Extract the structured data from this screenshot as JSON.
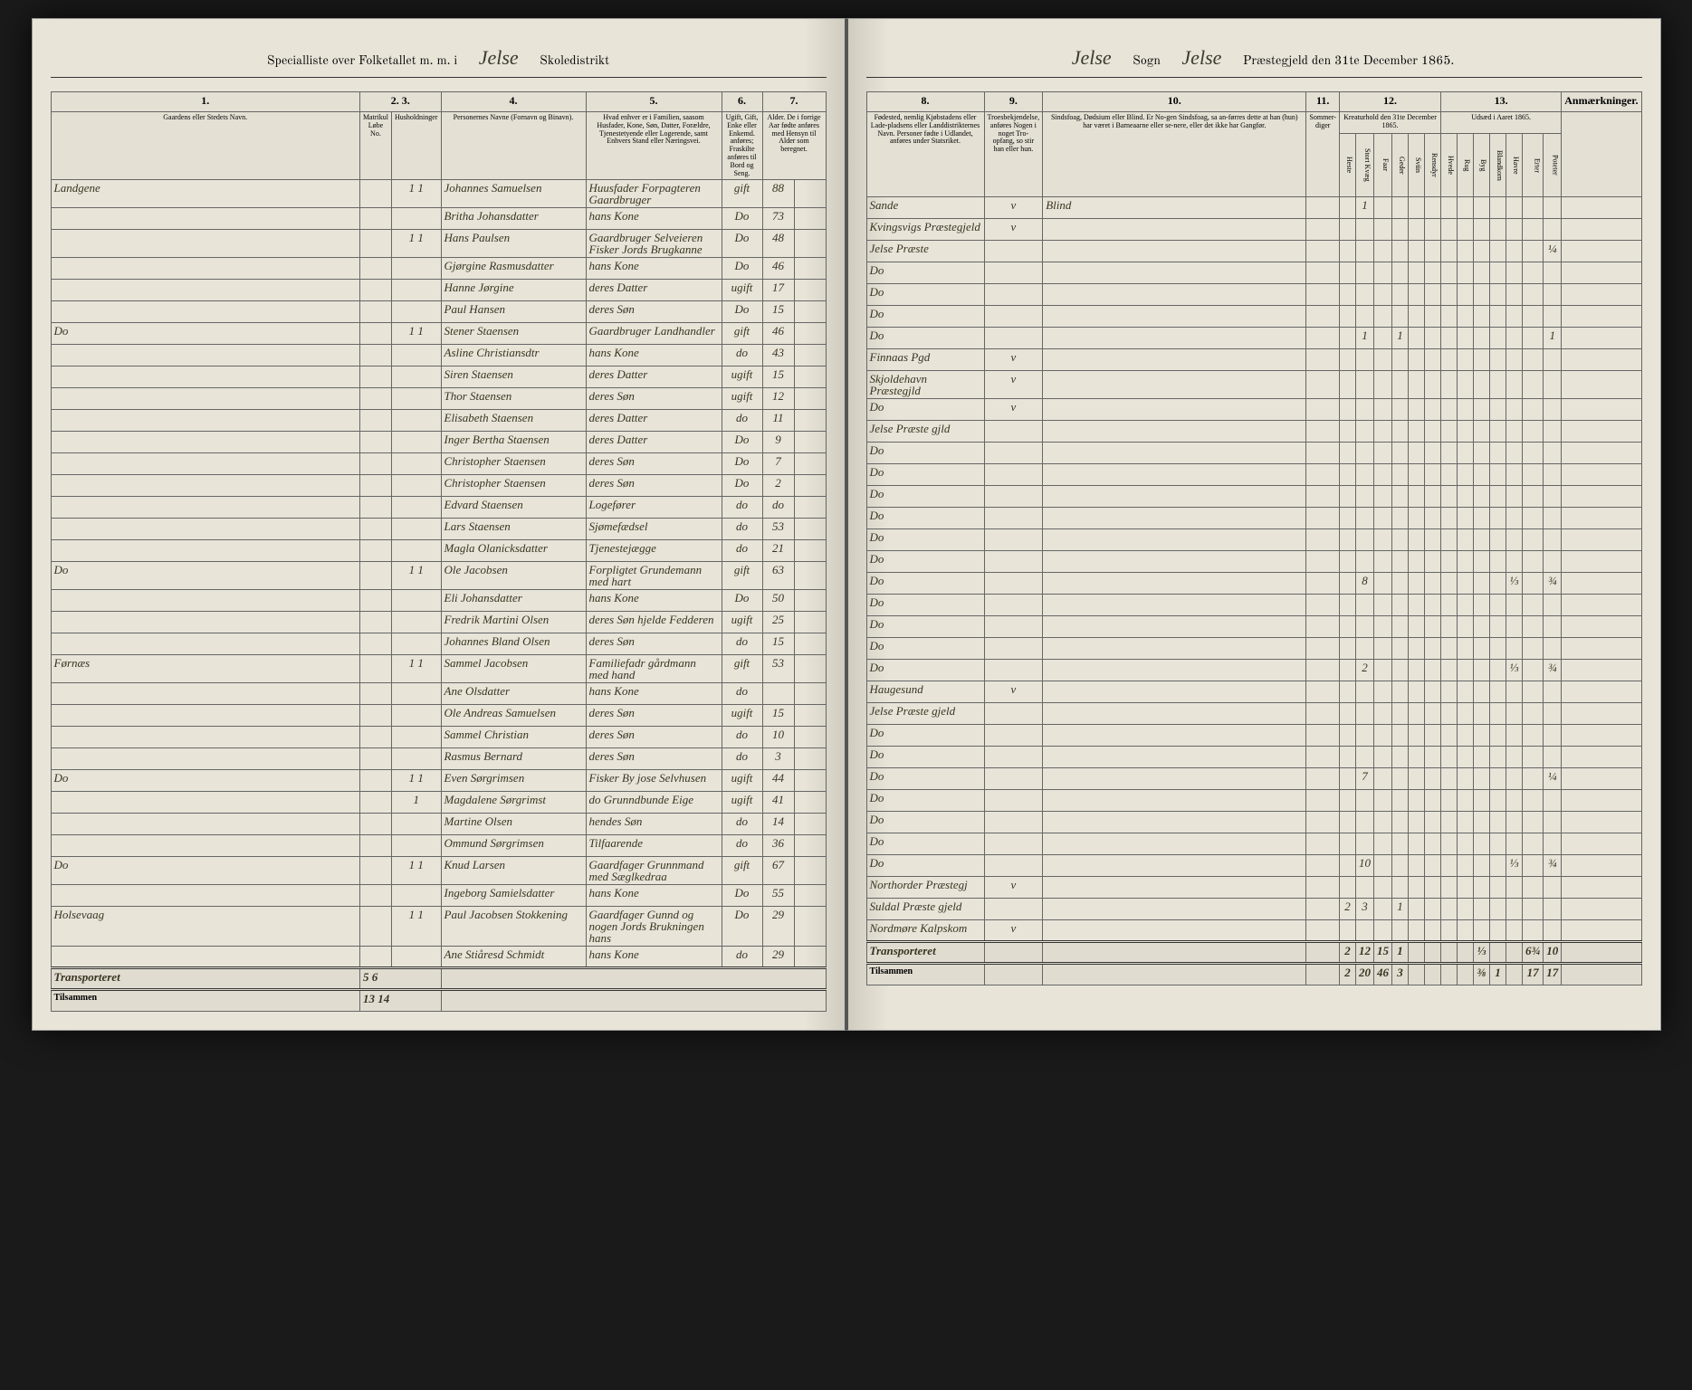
{
  "header": {
    "left_prefix": "Specialliste over Folketallet m. m. i",
    "district_script": "Jelse",
    "left_suffix": "Skoledistrikt",
    "right_sogn_script": "Jelse",
    "right_sogn_label": "Sogn",
    "right_gjeld_script": "Jelse",
    "right_gjeld_label": "Præstegjeld den 31te December 1865."
  },
  "columns_left": {
    "c1": "1.",
    "c2": "2.",
    "c3": "3.",
    "c4": "4.",
    "c5": "5.",
    "c6": "6.",
    "c7": "7.",
    "c1_label": "Gaardens eller Stedets\nNavn.",
    "c2_label": "Matrikul Løbe No.",
    "c3_label": "Husholdninger",
    "c4_label": "Personernes Navne (Fornavn og Binavn).",
    "c5_label": "Hvad enhver er i Familien, saasom Husfader, Kone, Søn, Datter, Forældre, Tjenestetyende eller Logerende, samt Enhvers Stand eller Næringsvei.",
    "c6_label": "Ugift, Gift, Enke eller Enkemd. anføres; Fraskilte anføres til Bord og Seng.",
    "c7_label": "Alder. De i forrige Aar fødte anføres med Hensyn til Alder som beregnet."
  },
  "columns_right": {
    "c8": "8.",
    "c9": "9.",
    "c10": "10.",
    "c11": "11.",
    "c12": "12.",
    "c13": "13.",
    "c8_label": "Fødested, nemlig Kjøbstadens eller Lade-pladsens eller Landdistrikternes Navn. Personer fødte i Udlandet, anføres under Statsriket.",
    "c9_label": "Troesbekjendelse, anføres Nogen i noget Tro-opfang, so stir han eller hun.",
    "c10_label": "Sindsfoag, Dødsium eller Blind. Er No-gen Sindsfoag, sa an-førres dette at han (hun) har været i Barneaarne eller se-nere, eller det ikke har Gangfør.",
    "c11_label": "Sommer-diger",
    "c12_label": "Kreaturhold den 31te December 1865.",
    "c13_label": "Udsæd i Aaret 1865.",
    "c14_label": "Anmærkninger.",
    "c12_sub": [
      "Heste",
      "Stort Kvæg",
      "Faar",
      "Geder",
      "Sviin",
      "Rensdyr"
    ],
    "c13_sub": [
      "Hvede",
      "Rug",
      "Byg",
      "Blandkorn",
      "Havre",
      "Erter",
      "Poteter"
    ]
  },
  "rows": [
    {
      "place": "Landgene",
      "m": "",
      "h": "1 1",
      "name": "Johannes Samuelsen",
      "role": "Huusfader Forpagteren Gaardbruger",
      "status": "gift",
      "age": "88",
      "birth": "Sande",
      "c9": "v",
      "c10": "Blind",
      "c12": [
        "",
        "1",
        "",
        "",
        "",
        ""
      ],
      "c13": [
        "",
        "",
        "",
        "",
        "",
        "",
        ""
      ]
    },
    {
      "place": "",
      "m": "",
      "h": "",
      "name": "Britha Johansdatter",
      "role": "hans Kone",
      "status": "Do",
      "age": "73",
      "birth": "Kvingsvigs Præstegjeld",
      "c9": "v",
      "c10": "",
      "c12": [
        "",
        "",
        "",
        "",
        "",
        ""
      ],
      "c13": [
        "",
        "",
        "",
        "",
        "",
        "",
        ""
      ]
    },
    {
      "place": "",
      "m": "",
      "h": "1 1",
      "name": "Hans Paulsen",
      "role": "Gaardbruger Selveieren Fisker Jords Brugkanne",
      "status": "Do",
      "age": "48",
      "birth": "Jelse Præste",
      "c9": "",
      "c10": "",
      "c12": [
        "",
        "",
        "",
        "",
        "",
        ""
      ],
      "c13": [
        "",
        "",
        "",
        "",
        "",
        "",
        "¼"
      ]
    },
    {
      "place": "",
      "m": "",
      "h": "",
      "name": "Gjørgine Rasmusdatter",
      "role": "hans Kone",
      "status": "Do",
      "age": "46",
      "birth": "Do",
      "c9": "",
      "c10": "",
      "c12": [
        "",
        "",
        "",
        "",
        "",
        ""
      ],
      "c13": [
        "",
        "",
        "",
        "",
        "",
        "",
        ""
      ]
    },
    {
      "place": "",
      "m": "",
      "h": "",
      "name": "Hanne Jørgine",
      "role": "deres Datter",
      "status": "ugift",
      "age": "17",
      "birth": "Do",
      "c9": "",
      "c10": "",
      "c12": [
        "",
        "",
        "",
        "",
        "",
        ""
      ],
      "c13": [
        "",
        "",
        "",
        "",
        "",
        "",
        ""
      ]
    },
    {
      "place": "",
      "m": "",
      "h": "",
      "name": "Paul Hansen",
      "role": "deres Søn",
      "status": "Do",
      "age": "15",
      "birth": "Do",
      "c9": "",
      "c10": "",
      "c12": [
        "",
        "",
        "",
        "",
        "",
        ""
      ],
      "c13": [
        "",
        "",
        "",
        "",
        "",
        "",
        ""
      ]
    },
    {
      "place": "Do",
      "m": "",
      "h": "1 1",
      "name": "Stener Staensen",
      "role": "Gaardbruger Landhandler",
      "status": "gift",
      "age": "46",
      "birth": "Do",
      "c9": "",
      "c10": "",
      "c12": [
        "",
        "1",
        "",
        "1",
        "",
        ""
      ],
      "c13": [
        "",
        "",
        "",
        "",
        "",
        "",
        "1"
      ]
    },
    {
      "place": "",
      "m": "",
      "h": "",
      "name": "Asline Christiansdtr",
      "role": "hans Kone",
      "status": "do",
      "age": "43",
      "birth": "Finnaas Pgd",
      "c9": "v",
      "c10": "",
      "c12": [
        "",
        "",
        "",
        "",
        "",
        ""
      ],
      "c13": [
        "",
        "",
        "",
        "",
        "",
        "",
        ""
      ]
    },
    {
      "place": "",
      "m": "",
      "h": "",
      "name": "Siren Staensen",
      "role": "deres Datter",
      "status": "ugift",
      "age": "15",
      "birth": "Skjoldehavn Præstegjld",
      "c9": "v",
      "c10": "",
      "c12": [
        "",
        "",
        "",
        "",
        "",
        ""
      ],
      "c13": [
        "",
        "",
        "",
        "",
        "",
        "",
        ""
      ]
    },
    {
      "place": "",
      "m": "",
      "h": "",
      "name": "Thor Staensen",
      "role": "deres Søn",
      "status": "ugift",
      "age": "12",
      "birth": "Do",
      "c9": "v",
      "c10": "",
      "c12": [
        "",
        "",
        "",
        "",
        "",
        ""
      ],
      "c13": [
        "",
        "",
        "",
        "",
        "",
        "",
        ""
      ]
    },
    {
      "place": "",
      "m": "",
      "h": "",
      "name": "Elisabeth Staensen",
      "role": "deres Datter",
      "status": "do",
      "age": "11",
      "birth": "Jelse Præste gjld",
      "c9": "",
      "c10": "",
      "c12": [
        "",
        "",
        "",
        "",
        "",
        ""
      ],
      "c13": [
        "",
        "",
        "",
        "",
        "",
        "",
        ""
      ]
    },
    {
      "place": "",
      "m": "",
      "h": "",
      "name": "Inger Bertha Staensen",
      "role": "deres Datter",
      "status": "Do",
      "age": "9",
      "birth": "Do",
      "c9": "",
      "c10": "",
      "c12": [
        "",
        "",
        "",
        "",
        "",
        ""
      ],
      "c13": [
        "",
        "",
        "",
        "",
        "",
        "",
        ""
      ]
    },
    {
      "place": "",
      "m": "",
      "h": "",
      "name": "Christopher Staensen",
      "role": "deres Søn",
      "status": "Do",
      "age": "7",
      "birth": "Do",
      "c9": "",
      "c10": "",
      "c12": [
        "",
        "",
        "",
        "",
        "",
        ""
      ],
      "c13": [
        "",
        "",
        "",
        "",
        "",
        "",
        ""
      ]
    },
    {
      "place": "",
      "m": "",
      "h": "",
      "name": "Christopher Staensen",
      "role": "deres Søn",
      "status": "Do",
      "age": "2",
      "birth": "Do",
      "c9": "",
      "c10": "",
      "c12": [
        "",
        "",
        "",
        "",
        "",
        ""
      ],
      "c13": [
        "",
        "",
        "",
        "",
        "",
        "",
        ""
      ]
    },
    {
      "place": "",
      "m": "",
      "h": "",
      "name": "Edvard Staensen",
      "role": "Logefører",
      "status": "do",
      "age": "do",
      "birth": "Do",
      "c9": "",
      "c10": "",
      "c12": [
        "",
        "",
        "",
        "",
        "",
        ""
      ],
      "c13": [
        "",
        "",
        "",
        "",
        "",
        "",
        ""
      ]
    },
    {
      "place": "",
      "m": "",
      "h": "",
      "name": "Lars Staensen",
      "role": "Sjømefædsel",
      "status": "do",
      "age": "53",
      "birth": "Do",
      "c9": "",
      "c10": "",
      "c12": [
        "",
        "",
        "",
        "",
        "",
        ""
      ],
      "c13": [
        "",
        "",
        "",
        "",
        "",
        "",
        ""
      ]
    },
    {
      "place": "",
      "m": "",
      "h": "",
      "name": "Magla Olanicksdatter",
      "role": "Tjenestejægge",
      "status": "do",
      "age": "21",
      "birth": "Do",
      "c9": "",
      "c10": "",
      "c12": [
        "",
        "",
        "",
        "",
        "",
        ""
      ],
      "c13": [
        "",
        "",
        "",
        "",
        "",
        "",
        ""
      ]
    },
    {
      "place": "Do",
      "m": "",
      "h": "1 1",
      "name": "Ole Jacobsen",
      "role": "Forpligtet Grundemann med hart",
      "status": "gift",
      "age": "63",
      "birth": "Do",
      "c9": "",
      "c10": "",
      "c12": [
        "",
        "8",
        "",
        "",
        "",
        ""
      ],
      "c13": [
        "",
        "",
        "",
        "",
        "⅓",
        "",
        "¾"
      ]
    },
    {
      "place": "",
      "m": "",
      "h": "",
      "name": "Eli Johansdatter",
      "role": "hans Kone",
      "status": "Do",
      "age": "50",
      "birth": "Do",
      "c9": "",
      "c10": "",
      "c12": [
        "",
        "",
        "",
        "",
        "",
        ""
      ],
      "c13": [
        "",
        "",
        "",
        "",
        "",
        "",
        ""
      ]
    },
    {
      "place": "",
      "m": "",
      "h": "",
      "name": "Fredrik Martini Olsen",
      "role": "deres Søn hjelde Fedderen",
      "status": "ugift",
      "age": "25",
      "birth": "Do",
      "c9": "",
      "c10": "",
      "c12": [
        "",
        "",
        "",
        "",
        "",
        ""
      ],
      "c13": [
        "",
        "",
        "",
        "",
        "",
        "",
        ""
      ]
    },
    {
      "place": "",
      "m": "",
      "h": "",
      "name": "Johannes Bland Olsen",
      "role": "deres Søn",
      "status": "do",
      "age": "15",
      "birth": "Do",
      "c9": "",
      "c10": "",
      "c12": [
        "",
        "",
        "",
        "",
        "",
        ""
      ],
      "c13": [
        "",
        "",
        "",
        "",
        "",
        "",
        ""
      ]
    },
    {
      "place": "Førnæs",
      "m": "",
      "h": "1 1",
      "name": "Sammel Jacobsen",
      "role": "Familiefadr gårdmann med hand",
      "status": "gift",
      "age": "53",
      "birth": "Do",
      "c9": "",
      "c10": "",
      "c12": [
        "",
        "2",
        "",
        "",
        "",
        ""
      ],
      "c13": [
        "",
        "",
        "",
        "",
        "⅓",
        "",
        "¾"
      ]
    },
    {
      "place": "",
      "m": "",
      "h": "",
      "name": "Ane Olsdatter",
      "role": "hans Kone",
      "status": "do",
      "age": "",
      "birth": "Haugesund",
      "c9": "v",
      "c10": "",
      "c12": [
        "",
        "",
        "",
        "",
        "",
        ""
      ],
      "c13": [
        "",
        "",
        "",
        "",
        "",
        "",
        ""
      ]
    },
    {
      "place": "",
      "m": "",
      "h": "",
      "name": "Ole Andreas Samuelsen",
      "role": "deres Søn",
      "status": "ugift",
      "age": "15",
      "birth": "Jelse Præste gjeld",
      "c9": "",
      "c10": "",
      "c12": [
        "",
        "",
        "",
        "",
        "",
        ""
      ],
      "c13": [
        "",
        "",
        "",
        "",
        "",
        "",
        ""
      ]
    },
    {
      "place": "",
      "m": "",
      "h": "",
      "name": "Sammel Christian",
      "role": "deres Søn",
      "status": "do",
      "age": "10",
      "birth": "Do",
      "c9": "",
      "c10": "",
      "c12": [
        "",
        "",
        "",
        "",
        "",
        ""
      ],
      "c13": [
        "",
        "",
        "",
        "",
        "",
        "",
        ""
      ]
    },
    {
      "place": "",
      "m": "",
      "h": "",
      "name": "Rasmus Bernard",
      "role": "deres Søn",
      "status": "do",
      "age": "3",
      "birth": "Do",
      "c9": "",
      "c10": "",
      "c12": [
        "",
        "",
        "",
        "",
        "",
        ""
      ],
      "c13": [
        "",
        "",
        "",
        "",
        "",
        "",
        ""
      ]
    },
    {
      "place": "Do",
      "m": "",
      "h": "1 1",
      "name": "Even Sørgrimsen",
      "role": "Fisker By jose Selvhusen",
      "status": "ugift",
      "age": "44",
      "birth": "Do",
      "c9": "",
      "c10": "",
      "c12": [
        "",
        "7",
        "",
        "",
        "",
        ""
      ],
      "c13": [
        "",
        "",
        "",
        "",
        "",
        "",
        "¼"
      ]
    },
    {
      "place": "",
      "m": "",
      "h": "1",
      "name": "Magdalene Sørgrimst",
      "role": "do Grunndbunde Eige",
      "status": "ugift",
      "age": "41",
      "birth": "Do",
      "c9": "",
      "c10": "",
      "c12": [
        "",
        "",
        "",
        "",
        "",
        ""
      ],
      "c13": [
        "",
        "",
        "",
        "",
        "",
        "",
        ""
      ]
    },
    {
      "place": "",
      "m": "",
      "h": "",
      "name": "Martine Olsen",
      "role": "hendes Søn",
      "status": "do",
      "age": "14",
      "birth": "Do",
      "c9": "",
      "c10": "",
      "c12": [
        "",
        "",
        "",
        "",
        "",
        ""
      ],
      "c13": [
        "",
        "",
        "",
        "",
        "",
        "",
        ""
      ]
    },
    {
      "place": "",
      "m": "",
      "h": "",
      "name": "Ommund Sørgrimsen",
      "role": "Tilfaarende",
      "status": "do",
      "age": "36",
      "birth": "Do",
      "c9": "",
      "c10": "",
      "c12": [
        "",
        "",
        "",
        "",
        "",
        ""
      ],
      "c13": [
        "",
        "",
        "",
        "",
        "",
        "",
        ""
      ]
    },
    {
      "place": "Do",
      "m": "",
      "h": "1 1",
      "name": "Knud Larsen",
      "role": "Gaardfager Grunnmand med Sæglkedraa",
      "status": "gift",
      "age": "67",
      "birth": "Do",
      "c9": "",
      "c10": "",
      "c12": [
        "",
        "10",
        "",
        "",
        "",
        ""
      ],
      "c13": [
        "",
        "",
        "",
        "",
        "⅓",
        "",
        "¾"
      ]
    },
    {
      "place": "",
      "m": "",
      "h": "",
      "name": "Ingeborg Samielsdatter",
      "role": "hans Kone",
      "status": "Do",
      "age": "55",
      "birth": "Northorder Præstegj",
      "c9": "v",
      "c10": "",
      "c12": [
        "",
        "",
        "",
        "",
        "",
        ""
      ],
      "c13": [
        "",
        "",
        "",
        "",
        "",
        "",
        ""
      ]
    },
    {
      "place": "Holsevaag",
      "m": "",
      "h": "1 1",
      "name": "Paul Jacobsen Stokkening",
      "role": "Gaardfager Gunnd og nogen Jords Brukningen hans",
      "status": "Do",
      "age": "29",
      "birth": "Suldal Præste gjeld",
      "c9": "",
      "c10": "",
      "c12": [
        "2",
        "3",
        "",
        "1",
        "",
        ""
      ],
      "c13": [
        "",
        "",
        "",
        "",
        "",
        "",
        ""
      ]
    },
    {
      "place": "",
      "m": "",
      "h": "",
      "name": "Ane Stiåresd Schmidt",
      "role": "hans Kone",
      "status": "do",
      "age": "29",
      "birth": "Nordmøre Kalpskom",
      "c9": "v",
      "c10": "",
      "c12": [
        "",
        "",
        "",
        "",
        "",
        ""
      ],
      "c13": [
        "",
        "",
        "",
        "",
        "",
        "",
        ""
      ]
    }
  ],
  "footer": {
    "transport_label": "Transporteret",
    "transport_left": "5 6",
    "tilsammen_label": "Tilsammen",
    "tilsammen_left": "13 14",
    "transport_right_c12": [
      "2",
      "12",
      "15",
      "1",
      "",
      ""
    ],
    "transport_right_c13": [
      "",
      "",
      "⅓",
      "",
      "",
      "6¾",
      "10"
    ],
    "tilsammen_right_c12": [
      "2",
      "20",
      "46",
      "3",
      "",
      ""
    ],
    "tilsammen_right_c13": [
      "",
      "",
      "⅜",
      "1",
      "",
      "17",
      "17"
    ]
  }
}
